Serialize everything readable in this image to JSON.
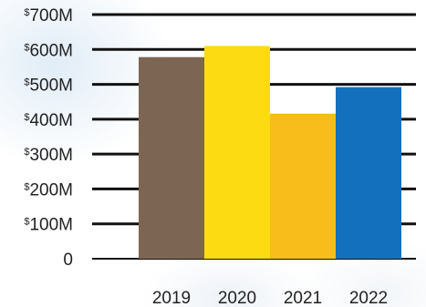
{
  "chart_data": {
    "type": "bar",
    "categories": [
      "2019",
      "2020",
      "2021",
      "2022"
    ],
    "values": [
      578,
      610,
      416,
      492
    ],
    "colors": [
      "#7d6553",
      "#fcdb12",
      "#f8bd1a",
      "#1370bd"
    ],
    "ylim": [
      0,
      700
    ],
    "yticks": [
      {
        "value": 0,
        "prefix": "",
        "label": "0"
      },
      {
        "value": 100,
        "prefix": "$",
        "label": "100M"
      },
      {
        "value": 200,
        "prefix": "$",
        "label": "200M"
      },
      {
        "value": 300,
        "prefix": "$",
        "label": "300M"
      },
      {
        "value": 400,
        "prefix": "$",
        "label": "400M"
      },
      {
        "value": 500,
        "prefix": "$",
        "label": "500M"
      },
      {
        "value": 600,
        "prefix": "$",
        "label": "600M"
      },
      {
        "value": 700,
        "prefix": "$",
        "label": "700M"
      }
    ],
    "title": "",
    "xlabel": "",
    "ylabel": "",
    "grid": true,
    "legend": "none"
  }
}
